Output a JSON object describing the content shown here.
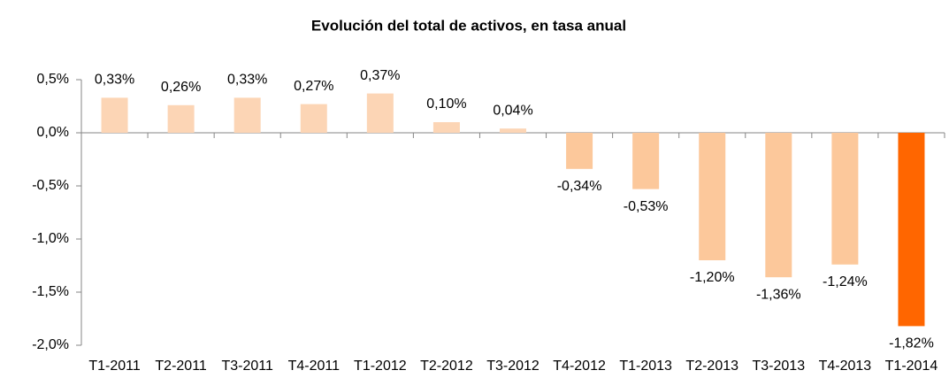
{
  "chart_data": {
    "type": "bar",
    "title": "Evolución del total de activos, en tasa anual",
    "categories": [
      "T1-2011",
      "T2-2011",
      "T3-2011",
      "T4-2011",
      "T1-2012",
      "T2-2012",
      "T3-2012",
      "T4-2012",
      "T1-2013",
      "T2-2013",
      "T3-2013",
      "T4-2013",
      "T1-2014"
    ],
    "values": [
      0.33,
      0.26,
      0.33,
      0.27,
      0.37,
      0.1,
      0.04,
      -0.34,
      -0.53,
      -1.2,
      -1.36,
      -1.24,
      -1.82
    ],
    "value_labels": [
      "0,33%",
      "0,26%",
      "0,33%",
      "0,27%",
      "0,37%",
      "0,10%",
      "0,04%",
      "-0,34%",
      "-0,53%",
      "-1,20%",
      "-1,36%",
      "-1,24%",
      "-1,82%"
    ],
    "colors": [
      "#fcd5b5",
      "#fcd5b5",
      "#fcd5b5",
      "#fcd5b5",
      "#fcd5b5",
      "#fcd5b5",
      "#fcd5b5",
      "#fcc89b",
      "#fcc89b",
      "#fcc89b",
      "#fcc89b",
      "#fcc89b",
      "#ff6600"
    ],
    "ylim": [
      -2.0,
      0.5
    ],
    "yticks": [
      {
        "value": 0.5,
        "label": "0,5%"
      },
      {
        "value": 0.0,
        "label": "0,0%"
      },
      {
        "value": -0.5,
        "label": "-0,5%"
      },
      {
        "value": -1.0,
        "label": "-1,0%"
      },
      {
        "value": -1.5,
        "label": "-1,5%"
      },
      {
        "value": -2.0,
        "label": "-2,0%"
      }
    ],
    "grid": false
  }
}
